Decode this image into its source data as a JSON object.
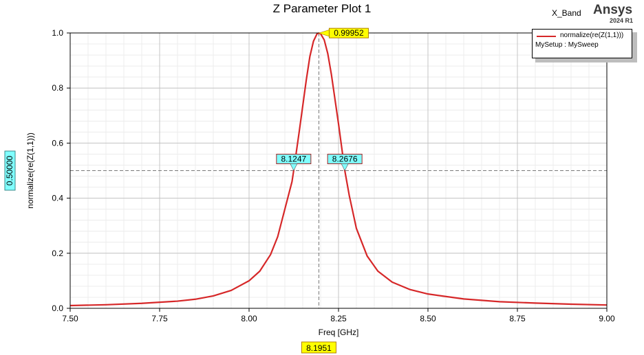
{
  "window": {
    "design_name": "X_Band",
    "brand": "Ansys",
    "version": "2024 R1"
  },
  "legend": {
    "series_name": "normalize(re(Z(1,1)))",
    "setup": "MySetup : MySweep",
    "position": "top-right"
  },
  "colors": {
    "series": "#d62728",
    "marker_peak": "#ffff00",
    "marker_cross": "#80ffff"
  },
  "markers": {
    "peak_label": "0.99952",
    "left_label": "8.1247",
    "right_label": "8.2676",
    "x_readout": "8.1951",
    "y_readout": "0.50000"
  },
  "chart_data": {
    "type": "line",
    "title": "Z Parameter Plot 1",
    "xlabel": "Freq [GHz]",
    "ylabel": "normalize(re(Z(1,1)))",
    "xlim": [
      7.5,
      9.0
    ],
    "ylim": [
      0.0,
      1.0
    ],
    "xticks": [
      "7.50",
      "7.75",
      "8.00",
      "8.25",
      "8.50",
      "8.75",
      "9.00"
    ],
    "yticks": [
      "0.0",
      "0.2",
      "0.4",
      "0.6",
      "0.8",
      "1.0"
    ],
    "grid": true,
    "series": [
      {
        "name": "normalize(re(Z(1,1)))",
        "x": [
          7.5,
          7.6,
          7.7,
          7.8,
          7.85,
          7.9,
          7.95,
          8.0,
          8.03,
          8.06,
          8.08,
          8.1,
          8.12,
          8.1247,
          8.14,
          8.16,
          8.17,
          8.18,
          8.19,
          8.1951,
          8.2,
          8.21,
          8.22,
          8.23,
          8.24,
          8.25,
          8.2676,
          8.28,
          8.3,
          8.33,
          8.36,
          8.4,
          8.45,
          8.5,
          8.6,
          8.7,
          8.8,
          8.9,
          9.0
        ],
        "y": [
          0.01,
          0.013,
          0.018,
          0.026,
          0.033,
          0.045,
          0.065,
          0.1,
          0.135,
          0.195,
          0.26,
          0.36,
          0.46,
          0.5,
          0.64,
          0.83,
          0.915,
          0.97,
          0.997,
          0.9995,
          0.997,
          0.975,
          0.925,
          0.85,
          0.76,
          0.67,
          0.5,
          0.41,
          0.29,
          0.19,
          0.135,
          0.095,
          0.068,
          0.052,
          0.034,
          0.024,
          0.019,
          0.015,
          0.012
        ]
      }
    ]
  }
}
